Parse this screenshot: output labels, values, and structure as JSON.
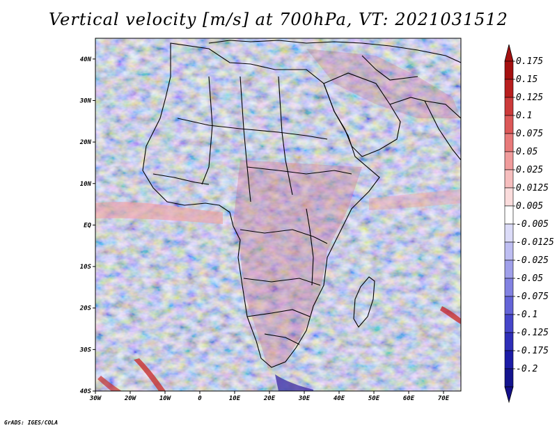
{
  "title": "Vertical velocity [m/s] at 700hPa, VT: 2021031512",
  "credit": "GrADS: IGES/COLA",
  "map": {
    "region": "Africa and Middle East",
    "lon_range": [
      -30,
      75
    ],
    "lat_range": [
      -40,
      45
    ],
    "lon_ticks": [
      "30W",
      "20W",
      "10W",
      "0",
      "10E",
      "20E",
      "30E",
      "40E",
      "50E",
      "60E",
      "70E"
    ],
    "lat_ticks": [
      "40N",
      "30N",
      "20N",
      "10N",
      "EQ",
      "10S",
      "20S",
      "30S",
      "40S"
    ]
  },
  "colorbar": {
    "labels": [
      "0.175",
      "0.15",
      "0.125",
      "0.1",
      "0.075",
      "0.05",
      "0.025",
      "0.0125",
      "0.005",
      "-0.005",
      "-0.0125",
      "-0.025",
      "-0.05",
      "-0.075",
      "-0.1",
      "-0.125",
      "-0.175",
      "-0.2"
    ],
    "colors": [
      "#a41010",
      "#b81e1e",
      "#cc3a3a",
      "#dc5858",
      "#e87a7a",
      "#f09c9c",
      "#f6bebe",
      "#fadcdc",
      "#ffffff",
      "#dcdcf8",
      "#bebef2",
      "#a0a0ea",
      "#8282e2",
      "#6464d8",
      "#4646ca",
      "#2e2eb8",
      "#1c1ca6",
      "#14148e"
    ],
    "arrow_top_color": "#a41010",
    "arrow_bottom_color": "#140f8a"
  }
}
